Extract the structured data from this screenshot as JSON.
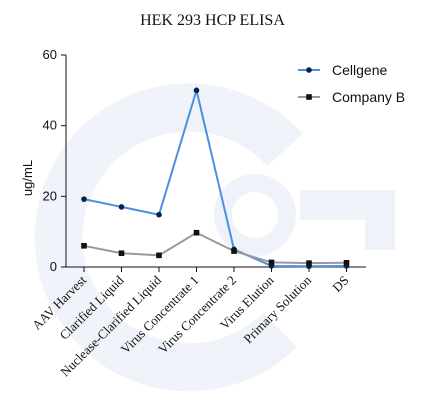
{
  "chart_data": {
    "type": "line",
    "title": "HEK 293 HCP ELISA",
    "xlabel": "",
    "ylabel": "ug/mL",
    "ylim": [
      0,
      60
    ],
    "yticks": [
      0,
      20,
      40,
      60
    ],
    "grid": false,
    "legend_position": "top-right",
    "categories": [
      "AAV Harvest",
      "Clarified Liquid",
      "Nuclease-Clarified Liquid",
      "Virus Concentrate 1",
      "Virus Concentrate 2",
      "Virus Elution",
      "Primary Solution",
      "DS"
    ],
    "series": [
      {
        "name": "Cellgene",
        "color": "#4a90e2",
        "marker": "circle",
        "values": [
          19.2,
          17.0,
          14.8,
          50.0,
          5.0,
          0.3,
          0.2,
          0.3
        ]
      },
      {
        "name": "Company B",
        "color": "#999999",
        "marker": "square",
        "values": [
          6.0,
          3.9,
          3.3,
          9.7,
          4.5,
          1.3,
          1.1,
          1.2
        ]
      }
    ]
  }
}
